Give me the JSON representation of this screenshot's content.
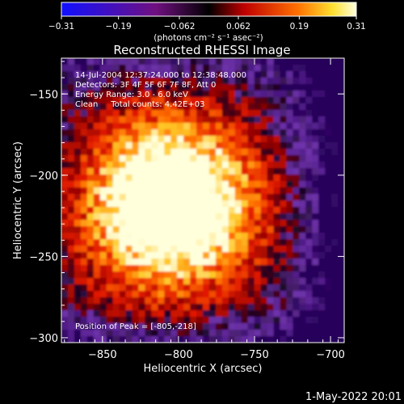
{
  "chart_data": {
    "type": "heatmap",
    "title": "Reconstructed RHESSI Image",
    "xlabel": "Heliocentric X (arcsec)",
    "ylabel": "Heliocentric Y (arcsec)",
    "xlim": [
      -877,
      -691
    ],
    "ylim": [
      -303,
      -128
    ],
    "x_ticks": [
      -850,
      -800,
      -750,
      -700
    ],
    "y_ticks": [
      -150,
      -200,
      -250,
      -300
    ],
    "x_tick_labels": [
      "−850",
      "−800",
      "−750",
      "−700"
    ],
    "y_tick_labels": [
      "−150",
      "−200",
      "−250",
      "−300"
    ],
    "colorbar": {
      "min": -0.31,
      "max": 0.31,
      "ticks": [
        -0.31,
        -0.19,
        -0.062,
        0.062,
        0.19,
        0.31
      ],
      "tick_labels": [
        "−0.31",
        "−0.19",
        "−0.062",
        "0.062",
        "0.19",
        "0.31"
      ],
      "unit_label": "(photons cm⁻² s⁻¹ asec⁻²)"
    },
    "annotations": [
      "14-Jul-2004 12:37:24.000 to 12:38:48.000",
      "Detectors: 3F 4F 5F 6F 7F 8F, Att 0",
      "Energy Range: 3.0 - 6.0 keV",
      "Clean     Total counts: 4.42E+03",
      "Position of Peak = [-805,-218]"
    ],
    "peak": {
      "x": -805,
      "y": -218
    }
  },
  "footer": {
    "date": "1-May-2022 20:01"
  }
}
